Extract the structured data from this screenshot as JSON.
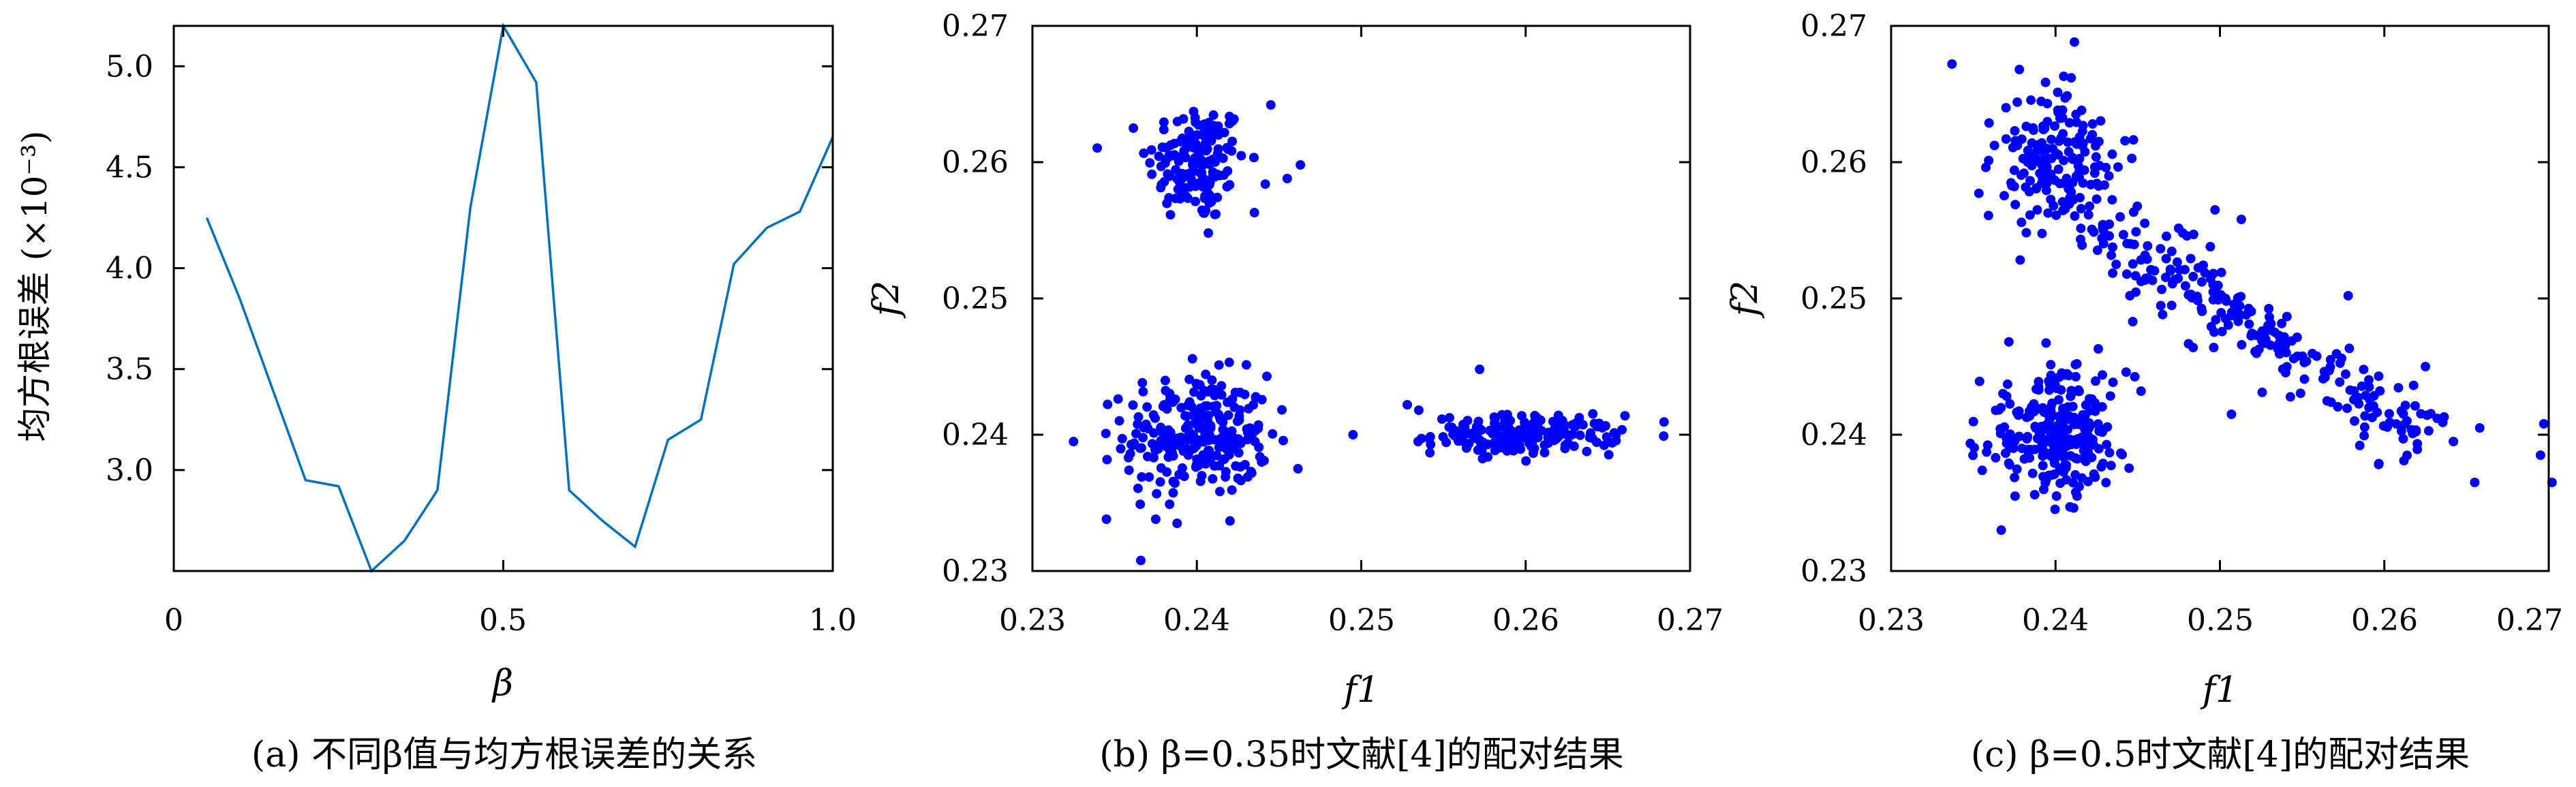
{
  "chart_data": [
    {
      "type": "line",
      "ylabel": "均方根误差 (×10⁻³)",
      "xlabel": "β",
      "xlim": [
        0,
        1.0
      ],
      "ylim": [
        2.5,
        5.2
      ],
      "xticks": [
        "0",
        "0.5",
        "1.0"
      ],
      "yticks": [
        "3.0",
        "3.5",
        "4.0",
        "4.5",
        "5.0"
      ],
      "caption": "(a) 不同β值与均方根误差的关系",
      "color": "#0072bd",
      "series": [
        {
          "x": [
            0.05,
            0.1,
            0.15,
            0.2,
            0.25,
            0.3,
            0.35,
            0.4,
            0.45,
            0.5,
            0.55,
            0.6,
            0.65,
            0.7,
            0.75,
            0.8,
            0.85,
            0.9,
            0.95,
            1.0
          ],
          "values": [
            4.25,
            3.85,
            3.4,
            2.95,
            2.92,
            2.5,
            2.65,
            2.9,
            4.3,
            5.2,
            4.92,
            2.9,
            2.75,
            2.62,
            3.15,
            3.25,
            4.02,
            4.2,
            4.28,
            4.65
          ]
        }
      ]
    },
    {
      "type": "scatter",
      "xlabel": "f1",
      "ylabel": "f2",
      "xlim": [
        0.23,
        0.27
      ],
      "ylim": [
        0.23,
        0.27
      ],
      "xticks": [
        "0.23",
        "0.24",
        "0.25",
        "0.26",
        "0.27"
      ],
      "yticks": [
        "0.23",
        "0.24",
        "0.25",
        "0.26",
        "0.27"
      ],
      "caption": "(b) β=0.35时文献[4]的配对结果",
      "color": "#0000ff",
      "clusters": [
        {
          "center": [
            0.24,
            0.26
          ],
          "spread": [
            0.0015,
            0.0022
          ],
          "n": 150
        },
        {
          "center": [
            0.24,
            0.24
          ],
          "spread": [
            0.0022,
            0.0022
          ],
          "n": 260
        },
        {
          "center": [
            0.26,
            0.24
          ],
          "spread": [
            0.0028,
            0.0007
          ],
          "n": 190
        }
      ],
      "points": [
        [
          0.2325,
          0.2395
        ],
        [
          0.2495,
          0.24
        ],
        [
          0.2528,
          0.2422
        ],
        [
          0.2535,
          0.2418
        ],
        [
          0.2572,
          0.2448
        ],
        [
          0.2655,
          0.24
        ],
        [
          0.2345,
          0.2338
        ],
        [
          0.2375,
          0.2338
        ],
        [
          0.2388,
          0.2335
        ],
        [
          0.2425,
          0.2368
        ],
        [
          0.2407,
          0.2548
        ],
        [
          0.2435,
          0.2563
        ],
        [
          0.2445,
          0.2642
        ],
        [
          0.2463,
          0.2598
        ],
        [
          0.2455,
          0.2588
        ]
      ]
    },
    {
      "type": "scatter",
      "xlabel": "f1",
      "ylabel": "f2",
      "xlim": [
        0.23,
        0.27
      ],
      "ylim": [
        0.23,
        0.27
      ],
      "xticks": [
        "0.23",
        "0.24",
        "0.25",
        "0.26",
        "0.27"
      ],
      "yticks": [
        "0.23",
        "0.24",
        "0.25",
        "0.26",
        "0.27"
      ],
      "caption": "(c) β=0.5时文献[4]的配对结果",
      "color": "#0000ff",
      "clusters": [
        {
          "center": [
            0.24,
            0.24
          ],
          "spread": [
            0.0022,
            0.0022
          ],
          "n": 260
        },
        {
          "center": [
            0.24,
            0.26
          ],
          "spread": [
            0.0018,
            0.0025
          ],
          "n": 180
        }
      ],
      "band": {
        "from": [
          0.2425,
          0.2555
        ],
        "to": [
          0.2625,
          0.2395
        ],
        "n": 230,
        "perp_spread": 0.0012
      },
      "points": [
        [
          0.2337,
          0.2672
        ],
        [
          0.2378,
          0.2668
        ],
        [
          0.2395,
          0.2643
        ],
        [
          0.2405,
          0.2663
        ],
        [
          0.2497,
          0.2565
        ],
        [
          0.2513,
          0.2558
        ],
        [
          0.2484,
          0.2547
        ],
        [
          0.2578,
          0.2502
        ],
        [
          0.2697,
          0.2408
        ],
        [
          0.2702,
          0.2365
        ],
        [
          0.2695,
          0.2385
        ],
        [
          0.2642,
          0.2395
        ],
        [
          0.2655,
          0.2365
        ],
        [
          0.2658,
          0.2405
        ],
        [
          0.2625,
          0.245
        ],
        [
          0.2447,
          0.2483
        ],
        [
          0.2507,
          0.2415
        ],
        [
          0.2452,
          0.2432
        ],
        [
          0.2367,
          0.233
        ],
        [
          0.2413,
          0.2452
        ],
        [
          0.2426,
          0.2463
        ]
      ]
    }
  ]
}
